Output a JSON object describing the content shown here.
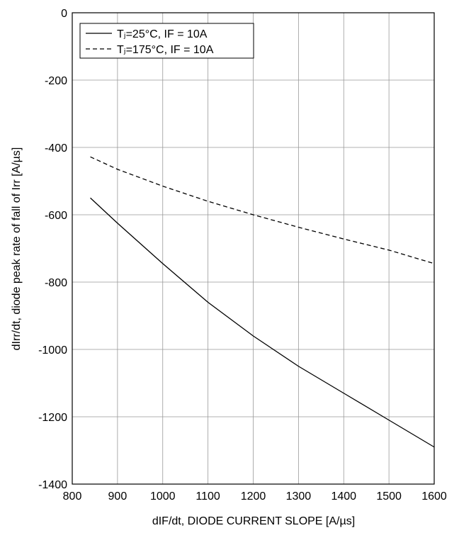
{
  "chart_data": {
    "type": "line",
    "x_label": "dIrr/dt, diode peak rate of fall of Irr [A/µs]",
    "x_axis_label": "dIF/dt, DIODE CURRENT SLOPE [A/µs]",
    "series": [
      {
        "name": "Tⱼ=25°C, IF = 10A",
        "color": "#000000",
        "line_style": "solid",
        "x": [
          840,
          900,
          1000,
          1100,
          1200,
          1300,
          1400,
          1500,
          1600
        ],
        "values": [
          -550,
          -625,
          -745,
          -860,
          -960,
          -1050,
          -1130,
          -1210,
          -1290
        ]
      },
      {
        "name": "Tⱼ=175°C, IF = 10A",
        "color": "#000000",
        "line_style": "dashed",
        "x": [
          840,
          900,
          1000,
          1100,
          1200,
          1300,
          1400,
          1500,
          1600
        ],
        "values": [
          -428,
          -465,
          -515,
          -560,
          -600,
          -637,
          -672,
          -705,
          -745
        ]
      }
    ],
    "xlim": [
      800,
      1600
    ],
    "xticks": [
      800,
      900,
      1000,
      1100,
      1200,
      1300,
      1400,
      1500,
      1600
    ],
    "ylim": [
      -1400,
      0
    ],
    "yticks": [
      -1400,
      -1200,
      -1000,
      -800,
      -600,
      -400,
      -200,
      0
    ],
    "grid": true,
    "legend": "upper-left"
  }
}
